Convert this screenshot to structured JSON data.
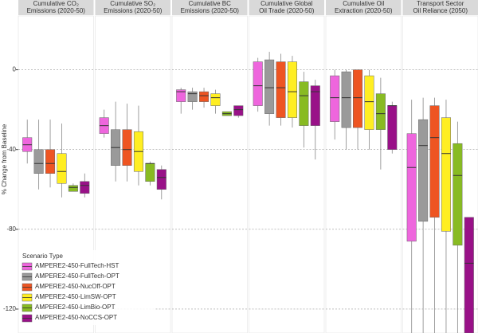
{
  "chart_data": {
    "type": "box",
    "y_label": "% Change from Baseline",
    "legend_title": "Scenario Type",
    "panels": [
      [
        "Cumulative CO₂",
        "Emissions (2020-50)"
      ],
      [
        "Cumulative SO₂",
        "Emissions (2020-50)"
      ],
      [
        "Cumulative BC",
        "Emissions (2020-50)"
      ],
      [
        "Cumulative Global",
        "Oil Trade (2020-50)"
      ],
      [
        "Cumulative Oil",
        "Extraction (2020-50)"
      ],
      [
        "Transport Sector",
        "Oil Reliance (2050)"
      ]
    ],
    "ylim": [
      -132,
      27
    ],
    "yticks": [
      0,
      -40,
      -80,
      -120
    ],
    "grid": true,
    "legend": "lower left",
    "series": [
      {
        "name": "AMPERE2-450-FullTech-HST",
        "color": "#ee66dd",
        "boxes": [
          {
            "whishi": -25,
            "q3": -34,
            "med": -37.6,
            "q1": -41,
            "whislo": -47
          },
          {
            "whishi": -20,
            "q3": -24,
            "med": -28,
            "q1": -32,
            "whislo": -34
          },
          {
            "whishi": -9,
            "q3": -10,
            "med": -11,
            "q1": -16,
            "whislo": -22
          },
          {
            "whishi": 6,
            "q3": 4,
            "med": -8,
            "q1": -18,
            "whislo": -21
          },
          {
            "whishi": 0,
            "q3": -3,
            "med": -14,
            "q1": -26,
            "whislo": -35
          },
          {
            "whishi": -15,
            "q3": -32,
            "med": -49,
            "q1": -86,
            "whislo": -132
          }
        ]
      },
      {
        "name": "AMPERE2-450-FullTech-OPT",
        "color": "#9a9a9a",
        "boxes": [
          {
            "whishi": -25,
            "q3": -40,
            "med": -47,
            "q1": -52,
            "whislo": -60
          },
          {
            "whishi": -16,
            "q3": -30,
            "med": -39,
            "q1": -48,
            "whislo": -56
          },
          {
            "whishi": -9,
            "q3": -11,
            "med": -12,
            "q1": -16,
            "whislo": -20
          },
          {
            "whishi": 9,
            "q3": 5,
            "med": -9,
            "q1": -22,
            "whislo": -28
          },
          {
            "whishi": 0,
            "q3": -1,
            "med": -14,
            "q1": -29,
            "whislo": -40
          },
          {
            "whishi": -14,
            "q3": -25,
            "med": -38,
            "q1": -76,
            "whislo": -132
          }
        ]
      },
      {
        "name": "AMPERE2-450-NucOff-OPT",
        "color": "#ee5522",
        "boxes": [
          {
            "whishi": -25,
            "q3": -40,
            "med": -47,
            "q1": -52,
            "whislo": -59
          },
          {
            "whishi": -17,
            "q3": -30,
            "med": -40,
            "q1": -48,
            "whislo": -56
          },
          {
            "whishi": -9,
            "q3": -11,
            "med": -13,
            "q1": -16,
            "whislo": -19
          },
          {
            "whishi": 8,
            "q3": 4,
            "med": -9,
            "q1": -24,
            "whislo": -28
          },
          {
            "whishi": 0,
            "q3": 0,
            "med": -14,
            "q1": -29,
            "whislo": -40
          },
          {
            "whishi": -14,
            "q3": -18,
            "med": -34,
            "q1": -74,
            "whislo": -132
          }
        ]
      },
      {
        "name": "AMPERE2-450-LimSW-OPT",
        "color": "#ffee22",
        "boxes": [
          {
            "whishi": -27,
            "q3": -42,
            "med": -51,
            "q1": -57,
            "whislo": -64
          },
          {
            "whishi": -18,
            "q3": -31,
            "med": -41,
            "q1": -51,
            "whislo": -58
          },
          {
            "whishi": -10,
            "q3": -12,
            "med": -14,
            "q1": -18,
            "whislo": -22
          },
          {
            "whishi": 7,
            "q3": 4,
            "med": -11,
            "q1": -24,
            "whislo": -29
          },
          {
            "whishi": 0,
            "q3": -3,
            "med": -16,
            "q1": -30,
            "whislo": -40
          },
          {
            "whishi": -15,
            "q3": -24,
            "med": -42,
            "q1": -81,
            "whislo": -132
          }
        ]
      },
      {
        "name": "AMPERE2-450-LimBio-OPT",
        "color": "#88bb22",
        "boxes": [
          {
            "whishi": -57,
            "q3": -58,
            "med": -59,
            "q1": -61,
            "whislo": -61
          },
          {
            "whishi": -46,
            "q3": -47,
            "med": -47,
            "q1": -56,
            "whislo": -58
          },
          {
            "whishi": -21,
            "q3": -21,
            "med": -22,
            "q1": -23,
            "whislo": -23
          },
          {
            "whishi": -1,
            "q3": -6,
            "med": -13,
            "q1": -28,
            "whislo": -39
          },
          {
            "whishi": -4,
            "q3": -12,
            "med": -22,
            "q1": -30,
            "whislo": -50
          },
          {
            "whishi": -26,
            "q3": -37,
            "med": -53,
            "q1": -88,
            "whislo": -132
          }
        ]
      },
      {
        "name": "AMPERE2-450-NoCCS-OPT",
        "color": "#991188",
        "boxes": [
          {
            "whishi": -52,
            "q3": -56,
            "med": -58,
            "q1": -62,
            "whislo": -64
          },
          {
            "whishi": -48,
            "q3": -50,
            "med": -54,
            "q1": -60,
            "whislo": -65
          },
          {
            "whishi": -18,
            "q3": -18,
            "med": -20,
            "q1": -23,
            "whislo": -24
          },
          {
            "whishi": -5,
            "q3": -8,
            "med": -11,
            "q1": -28,
            "whislo": -45
          },
          {
            "whishi": -16,
            "q3": -18,
            "med": -18,
            "q1": -40,
            "whislo": -42
          },
          {
            "whishi": -74,
            "q3": -74,
            "med": -97,
            "q1": -132,
            "whislo": -132
          }
        ]
      }
    ]
  }
}
